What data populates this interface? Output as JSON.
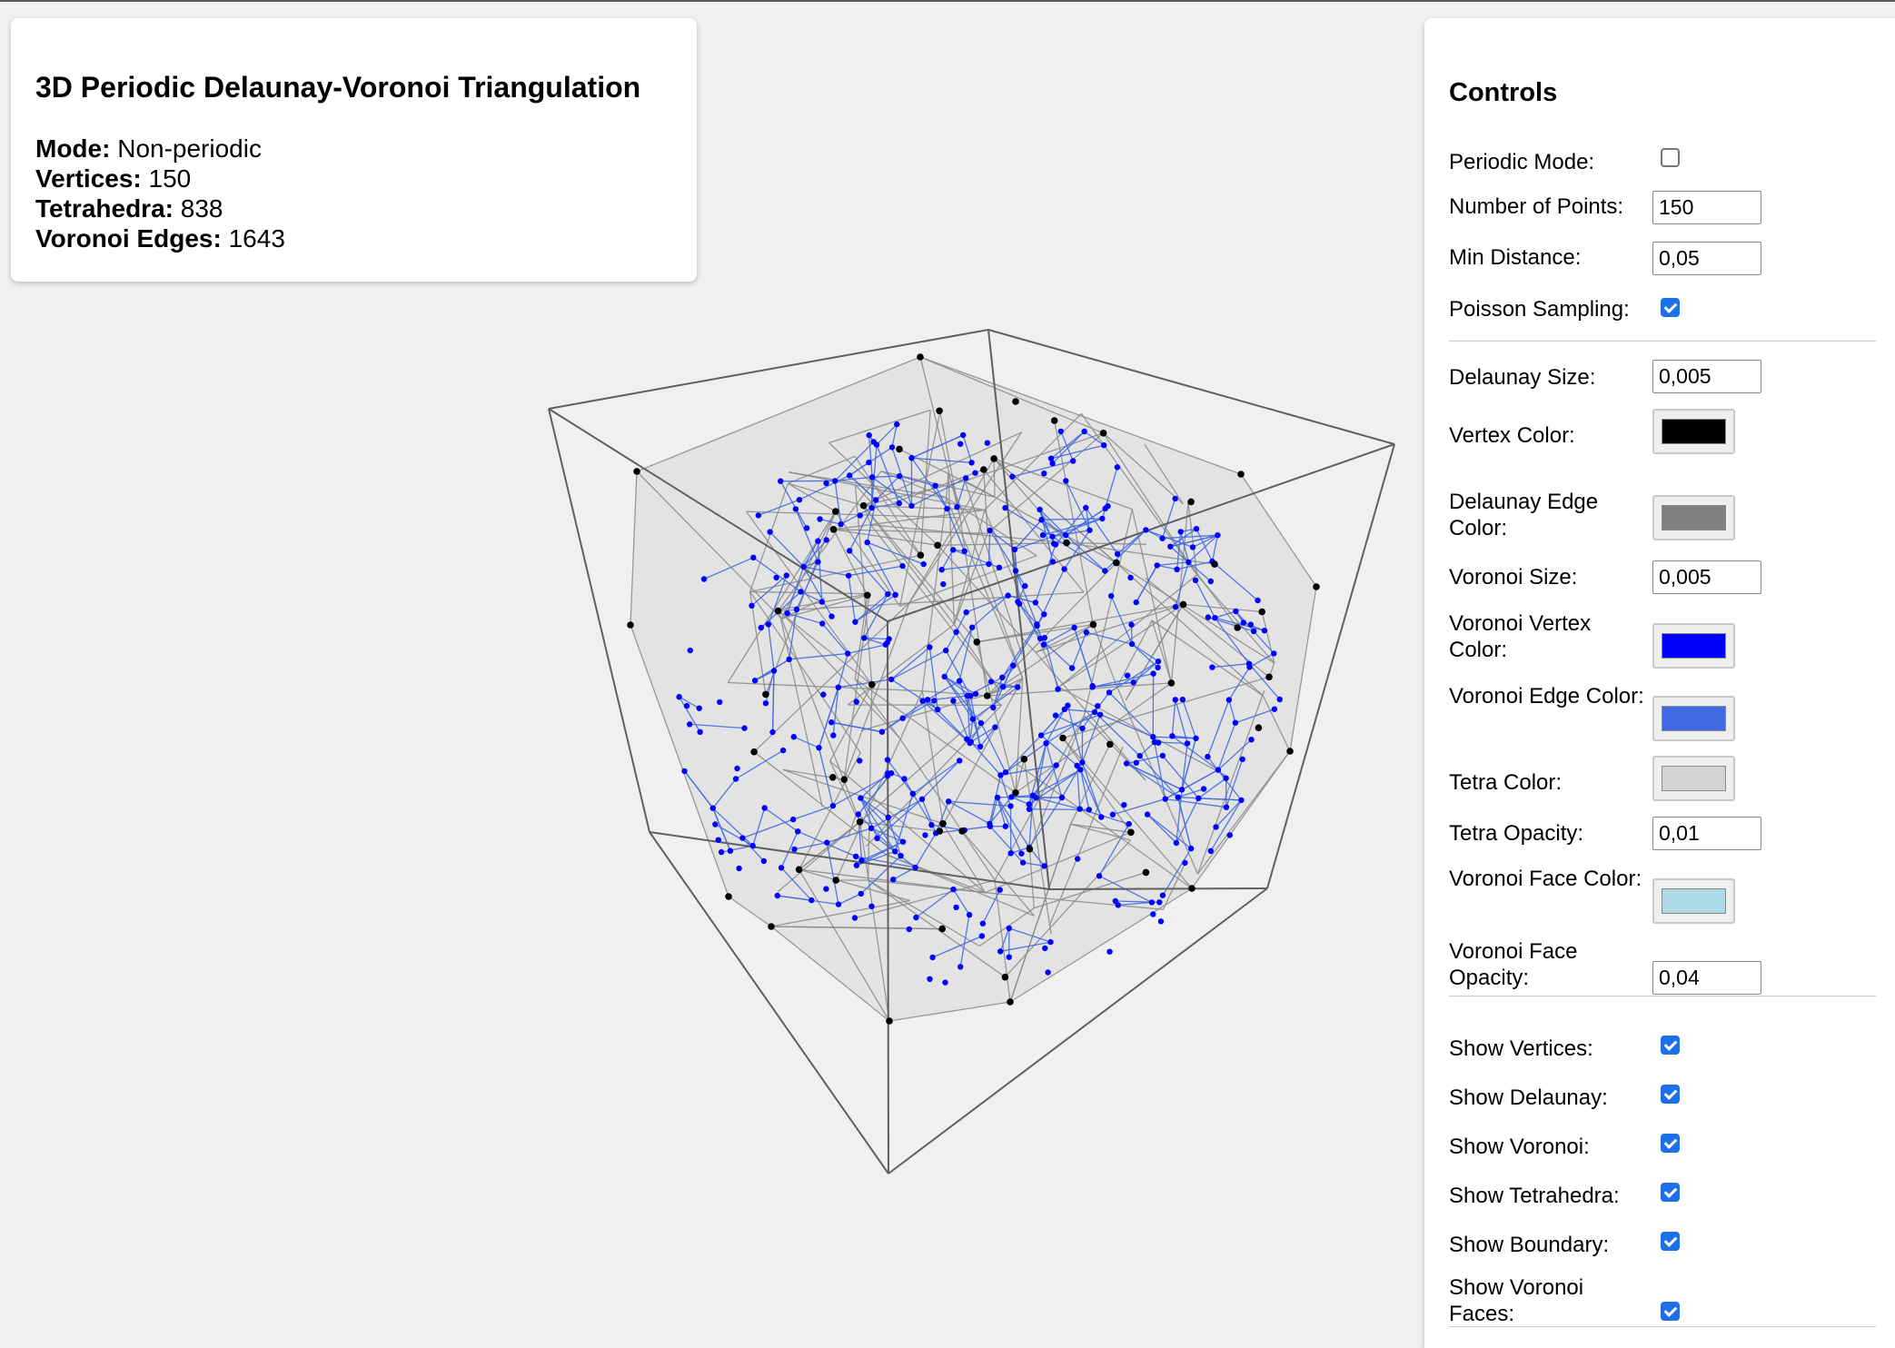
{
  "info": {
    "title": "3D Periodic Delaunay-Voronoi Triangulation",
    "mode_label": "Mode:",
    "mode_value": "Non-periodic",
    "vertices_label": "Vertices:",
    "vertices_value": "150",
    "tetrahedra_label": "Tetrahedra:",
    "tetrahedra_value": "838",
    "voronoi_edges_label": "Voronoi Edges:",
    "voronoi_edges_value": "1643"
  },
  "controls": {
    "title": "Controls",
    "periodic_mode": {
      "label": "Periodic Mode:",
      "checked": false
    },
    "number_of_points": {
      "label": "Number of Points:",
      "value": "150"
    },
    "min_distance": {
      "label": "Min Distance:",
      "value": "0,05"
    },
    "poisson_sampling": {
      "label": "Poisson Sampling:",
      "checked": true
    },
    "delaunay_size": {
      "label": "Delaunay Size:",
      "value": "0,005"
    },
    "vertex_color": {
      "label": "Vertex Color:",
      "color": "#000000"
    },
    "delaunay_edge_color": {
      "label": "Delaunay Edge Color:",
      "color": "#808080"
    },
    "voronoi_size": {
      "label": "Voronoi Size:",
      "value": "0,005"
    },
    "voronoi_vertex_color": {
      "label": "Voronoi Vertex Color:",
      "color": "#0000ff"
    },
    "voronoi_edge_color": {
      "label": "Voronoi Edge Color:",
      "color": "#4169e1"
    },
    "tetra_color": {
      "label": "Tetra Color:",
      "color": "#d3d3d3"
    },
    "tetra_opacity": {
      "label": "Tetra Opacity:",
      "value": "0,01"
    },
    "voronoi_face_color": {
      "label": "Voronoi Face Color:",
      "color": "#add8e6"
    },
    "voronoi_face_opacity": {
      "label": "Voronoi Face Opacity:",
      "value": "0,04"
    },
    "show_vertices": {
      "label": "Show Vertices:",
      "checked": true
    },
    "show_delaunay": {
      "label": "Show Delaunay:",
      "checked": true
    },
    "show_voronoi": {
      "label": "Show Voronoi:",
      "checked": true
    },
    "show_tetrahedra": {
      "label": "Show Tetrahedra:",
      "checked": true
    },
    "show_boundary": {
      "label": "Show Boundary:",
      "checked": true
    },
    "show_voronoi_faces": {
      "label": "Show Voronoi Faces:",
      "checked": true
    }
  },
  "scene": {
    "background": "#f0f0f0",
    "boundary_color": "#606060",
    "delaunay_edge_color": "#8a8a8a",
    "voronoi_edge_color": "#4169e1",
    "voronoi_vertex_color": "#0000ff",
    "delaunay_vertex_color": "#000000",
    "hull_fill_color": "#d9d9d9"
  }
}
